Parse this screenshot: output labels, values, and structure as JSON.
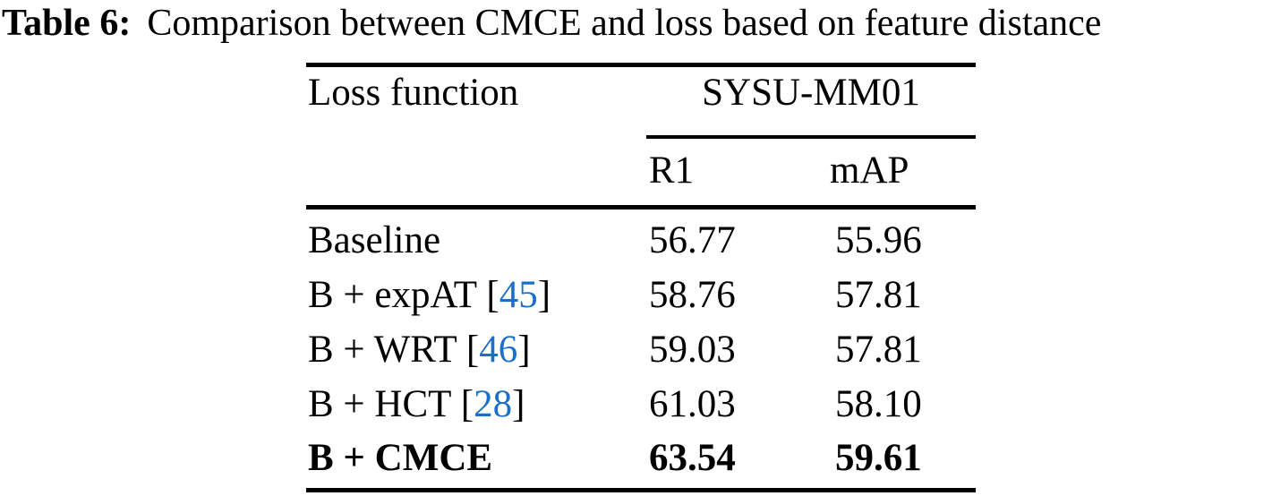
{
  "caption": {
    "label": "Table 6:",
    "text": "Comparison between CMCE and loss based on feature distance"
  },
  "table": {
    "col1_header": "Loss function",
    "group_header": "SYSU-MM01",
    "sub_headers": {
      "r1": "R1",
      "map": "mAP"
    },
    "rows": [
      {
        "name": "Baseline",
        "r1": "56.77",
        "map": "55.96"
      },
      {
        "name": "B + expAT",
        "open": "[",
        "cite": "45",
        "close": "]",
        "r1": "58.76",
        "map": "57.81"
      },
      {
        "name": "B + WRT",
        "open": "[",
        "cite": "46",
        "close": "]",
        "r1": "59.03",
        "map": "57.81"
      },
      {
        "name": "B + HCT",
        "open": "[",
        "cite": "28",
        "close": "]",
        "r1": "61.03",
        "map": "58.10"
      },
      {
        "name": "B + CMCE",
        "r1": "63.54",
        "map": "59.61"
      }
    ]
  },
  "colors": {
    "text": "#000000",
    "rule": "#000000",
    "citation_link": "#1c6fc8"
  }
}
